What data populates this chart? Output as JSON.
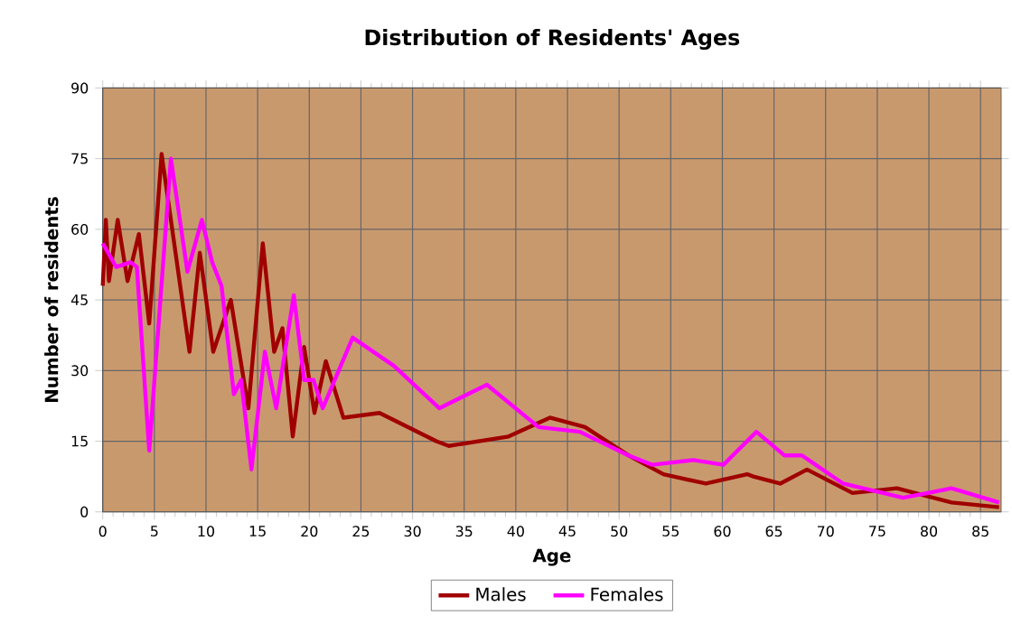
{
  "chart_data": {
    "type": "line",
    "title": "Distribution of Residents' Ages",
    "xlabel": "Age",
    "ylabel": "Number of residents",
    "xlim": [
      0,
      87
    ],
    "xticks": [
      0,
      5,
      10,
      15,
      20,
      25,
      30,
      35,
      40,
      45,
      50,
      55,
      60,
      65,
      70,
      75,
      80,
      85
    ],
    "ylim": [
      0,
      90
    ],
    "yticks": [
      0,
      15,
      30,
      45,
      60,
      75,
      90
    ],
    "grid": true,
    "legend": "bottom",
    "line_style": "solid",
    "marker": "none",
    "series": [
      {
        "name": "Males",
        "color": "#a00000",
        "x": [
          0,
          0.3,
          0.6,
          1.45,
          2.4,
          3.5,
          4.5,
          5.7,
          8.4,
          9.4,
          10.7,
          12.4,
          14.1,
          15.5,
          16.6,
          17.4,
          18.4,
          19.5,
          20.5,
          21.6,
          23.3,
          26.8,
          32.3,
          33.5,
          39.3,
          43.3,
          46.7,
          50.9,
          54.3,
          58.4,
          62.4,
          63,
          65.6,
          68.2,
          72.6,
          76.9,
          82.2,
          86.8
        ],
        "values": [
          48,
          62,
          49,
          62,
          49,
          59,
          40,
          76,
          34,
          55,
          34,
          45,
          22,
          57,
          34,
          39,
          16,
          35,
          21,
          32,
          20,
          21,
          15,
          14,
          16,
          20,
          18,
          12,
          8,
          6,
          8,
          7.5,
          6,
          9,
          4,
          5,
          2,
          1
        ]
      },
      {
        "name": "Females",
        "color": "#ff00ff",
        "x": [
          0,
          1.3,
          2.7,
          3.3,
          4.5,
          6.6,
          8.2,
          9.6,
          10.6,
          11.5,
          12.7,
          13.4,
          14.4,
          15.7,
          16.8,
          18.5,
          19.5,
          20.4,
          21.3,
          24.2,
          28.2,
          32.6,
          37.2,
          42.2,
          46.2,
          50.9,
          53.2,
          57.2,
          60.1,
          63.3,
          66,
          67.7,
          71.7,
          77.5,
          82.2,
          86.8
        ],
        "values": [
          57,
          52,
          53,
          52,
          13,
          75,
          51,
          62,
          53,
          48,
          25,
          28,
          9,
          34,
          22,
          46,
          28,
          28,
          22,
          37,
          31,
          22,
          27,
          18,
          17,
          12,
          10,
          11,
          10,
          17,
          12,
          12,
          6,
          3,
          5,
          2
        ]
      }
    ]
  }
}
